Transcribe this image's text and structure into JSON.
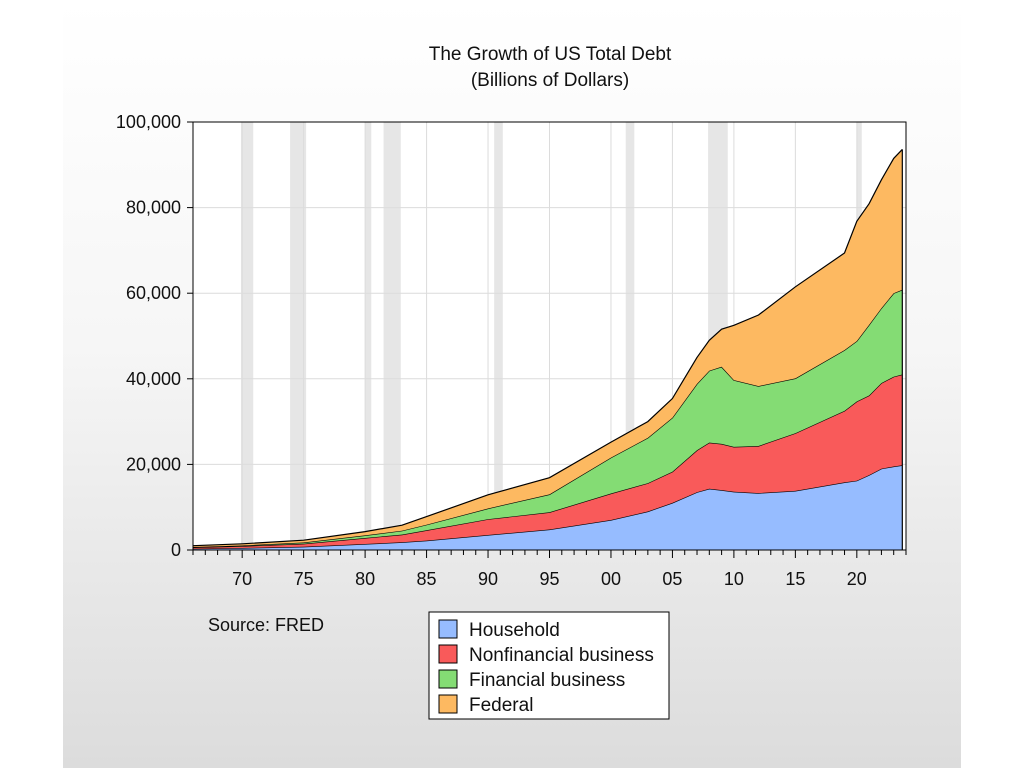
{
  "colors": {
    "household": "#96bcff",
    "nonfinancial": "#f95a5a",
    "financial": "#84dc74",
    "federal": "#fdb961",
    "recession": "#e6e6e6",
    "grid": "#dcdcdc",
    "axis": "#000000"
  },
  "chart_data": {
    "type": "area",
    "stacked": true,
    "title": "The Growth of US Total Debt",
    "subtitle": "(Billions of Dollars)",
    "xlabel": "",
    "ylabel": "",
    "xlim": [
      1966,
      2024
    ],
    "ylim": [
      0,
      100000
    ],
    "x_ticks": [
      1970,
      1975,
      1980,
      1985,
      1990,
      1995,
      2000,
      2005,
      2010,
      2015,
      2020
    ],
    "x_tick_labels": [
      "70",
      "75",
      "80",
      "85",
      "90",
      "95",
      "00",
      "05",
      "10",
      "15",
      "20"
    ],
    "y_ticks": [
      0,
      20000,
      40000,
      60000,
      80000,
      100000
    ],
    "y_tick_labels": [
      "0",
      "20,000",
      "40,000",
      "60,000",
      "80,000",
      "100,000"
    ],
    "grid": true,
    "source": "Source:  FRED",
    "legend_position": "bottom-center",
    "recessions": [
      [
        1969.9,
        1970.9
      ],
      [
        1973.9,
        1975.2
      ],
      [
        1980.0,
        1980.5
      ],
      [
        1981.5,
        1982.9
      ],
      [
        1990.5,
        1991.2
      ],
      [
        2001.2,
        2001.9
      ],
      [
        2007.9,
        2009.5
      ],
      [
        2020.0,
        2020.4
      ]
    ],
    "x": [
      1966,
      1970,
      1975,
      1980,
      1983,
      1985,
      1990,
      1995,
      2000,
      2003,
      2005,
      2007,
      2008,
      2009,
      2010,
      2012,
      2015,
      2019,
      2020,
      2021,
      2022,
      2023,
      2023.7
    ],
    "series": [
      {
        "name": "Household",
        "values": [
          300,
          460,
          750,
          1400,
          1800,
          2200,
          3500,
          4800,
          7000,
          9000,
          11000,
          13500,
          14300,
          14000,
          13600,
          13300,
          13800,
          15800,
          16200,
          17500,
          19000,
          19500,
          19800
        ]
      },
      {
        "name": "Nonfinancial business",
        "values": [
          300,
          450,
          700,
          1400,
          1800,
          2400,
          3700,
          4000,
          6200,
          6600,
          7300,
          9800,
          10800,
          10800,
          10500,
          11000,
          13500,
          16700,
          18500,
          18600,
          20000,
          21000,
          21200
        ]
      },
      {
        "name": "Financial business",
        "values": [
          100,
          150,
          300,
          600,
          900,
          1300,
          2500,
          4200,
          8400,
          10600,
          12600,
          15500,
          16800,
          18000,
          15600,
          14000,
          12800,
          14200,
          14100,
          16500,
          17500,
          19500,
          19800
        ]
      },
      {
        "name": "Federal",
        "values": [
          300,
          380,
          550,
          900,
          1300,
          1900,
          3200,
          3900,
          3600,
          3800,
          4500,
          6200,
          7100,
          8800,
          12800,
          16600,
          21400,
          22700,
          28000,
          28300,
          30000,
          31500,
          32800
        ]
      }
    ]
  },
  "legend": [
    "Household",
    "Nonfinancial business",
    "Financial business",
    "Federal"
  ]
}
